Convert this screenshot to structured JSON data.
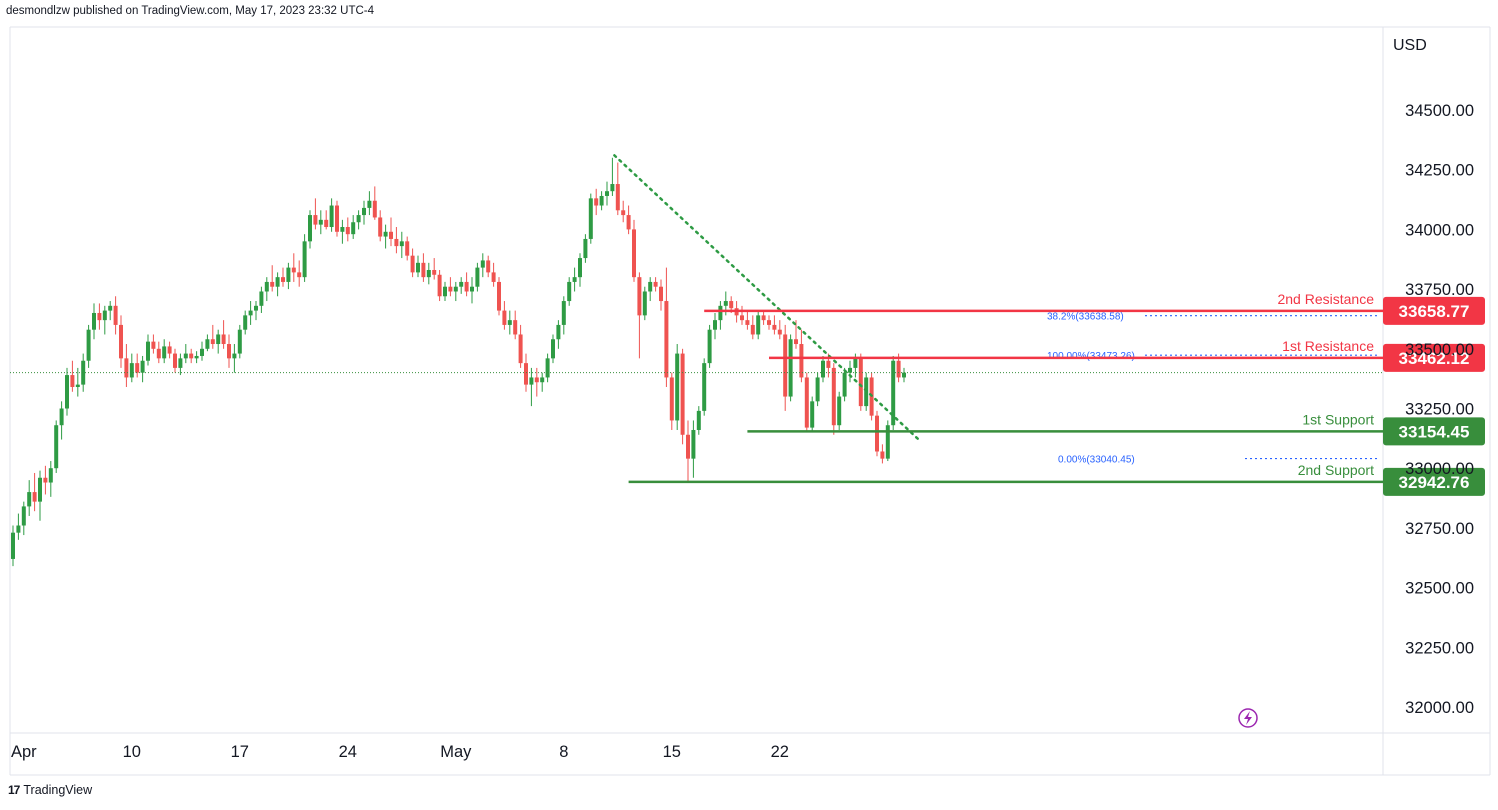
{
  "header": {
    "published_by": "desmondlzw published on TradingView.com, May 17, 2023 23:32 UTC-4"
  },
  "footer": {
    "brand": "TradingView",
    "brand_mark": "17"
  },
  "colors": {
    "bull": "#22ab94",
    "bear": "#f23645",
    "bull_body": "#2e9b44",
    "bear_body": "#ef5350",
    "support": "#388e3c",
    "resistance": "#f23645",
    "fib": "#2962ff",
    "trend": "#2e9b44"
  },
  "chart_data": {
    "type": "candlestick",
    "currency_label": "USD",
    "ylim": [
      31850,
      34750
    ],
    "y_ticks": [
      32000,
      32250,
      32500,
      32750,
      33000,
      33250,
      33500,
      33750,
      34000,
      34250,
      34500
    ],
    "y_tick_labels": [
      "32000.00",
      "32250.00",
      "32500.00",
      "32750.00",
      "33000.00",
      "33250.00",
      "33500.00",
      "33750.00",
      "34000.00",
      "34250.00",
      "34500.00"
    ],
    "x_ticks": [
      {
        "label": "Apr",
        "date": "2023-04-03"
      },
      {
        "label": "10",
        "date": "2023-04-10"
      },
      {
        "label": "17",
        "date": "2023-04-17"
      },
      {
        "label": "24",
        "date": "2023-04-24"
      },
      {
        "label": "May",
        "date": "2023-05-01"
      },
      {
        "label": "8",
        "date": "2023-05-08"
      },
      {
        "label": "15",
        "date": "2023-05-15"
      },
      {
        "label": "22",
        "date": "2023-05-22"
      }
    ],
    "bars_per_day": 4,
    "candles": [
      [
        32620,
        32760,
        32590,
        32730
      ],
      [
        32730,
        32810,
        32700,
        32760
      ],
      [
        32760,
        32860,
        32720,
        32840
      ],
      [
        32840,
        32950,
        32800,
        32900
      ],
      [
        32900,
        32980,
        32820,
        32860
      ],
      [
        32860,
        32990,
        32780,
        32960
      ],
      [
        32960,
        33010,
        32890,
        32940
      ],
      [
        32940,
        33030,
        32880,
        33000
      ],
      [
        33000,
        33200,
        32980,
        33180
      ],
      [
        33180,
        33280,
        33120,
        33250
      ],
      [
        33250,
        33420,
        33220,
        33390
      ],
      [
        33390,
        33450,
        33320,
        33340
      ],
      [
        33340,
        33420,
        33300,
        33350
      ],
      [
        33350,
        33480,
        33320,
        33450
      ],
      [
        33450,
        33600,
        33420,
        33580
      ],
      [
        33580,
        33690,
        33540,
        33650
      ],
      [
        33650,
        33690,
        33580,
        33620
      ],
      [
        33620,
        33680,
        33560,
        33660
      ],
      [
        33660,
        33700,
        33620,
        33680
      ],
      [
        33680,
        33720,
        33560,
        33600
      ],
      [
        33600,
        33640,
        33420,
        33460
      ],
      [
        33460,
        33520,
        33340,
        33380
      ],
      [
        33380,
        33480,
        33360,
        33440
      ],
      [
        33440,
        33480,
        33380,
        33400
      ],
      [
        33400,
        33470,
        33360,
        33450
      ],
      [
        33450,
        33560,
        33430,
        33530
      ],
      [
        33530,
        33560,
        33480,
        33500
      ],
      [
        33500,
        33530,
        33440,
        33460
      ],
      [
        33460,
        33540,
        33440,
        33510
      ],
      [
        33510,
        33530,
        33460,
        33480
      ],
      [
        33480,
        33500,
        33400,
        33420
      ],
      [
        33420,
        33480,
        33390,
        33460
      ],
      [
        33460,
        33520,
        33440,
        33480
      ],
      [
        33480,
        33500,
        33440,
        33460
      ],
      [
        33460,
        33490,
        33440,
        33470
      ],
      [
        33470,
        33530,
        33450,
        33500
      ],
      [
        33500,
        33560,
        33490,
        33540
      ],
      [
        33540,
        33600,
        33500,
        33520
      ],
      [
        33520,
        33580,
        33480,
        33560
      ],
      [
        33560,
        33620,
        33500,
        33520
      ],
      [
        33520,
        33560,
        33420,
        33460
      ],
      [
        33460,
        33520,
        33400,
        33480
      ],
      [
        33480,
        33600,
        33460,
        33580
      ],
      [
        33580,
        33660,
        33560,
        33640
      ],
      [
        33640,
        33700,
        33600,
        33660
      ],
      [
        33660,
        33700,
        33620,
        33680
      ],
      [
        33680,
        33760,
        33650,
        33740
      ],
      [
        33740,
        33800,
        33700,
        33780
      ],
      [
        33780,
        33850,
        33740,
        33760
      ],
      [
        33760,
        33820,
        33720,
        33800
      ],
      [
        33800,
        33840,
        33760,
        33780
      ],
      [
        33780,
        33860,
        33750,
        33840
      ],
      [
        33840,
        33900,
        33780,
        33820
      ],
      [
        33820,
        33870,
        33760,
        33800
      ],
      [
        33800,
        33980,
        33780,
        33950
      ],
      [
        33950,
        34080,
        33920,
        34060
      ],
      [
        34060,
        34130,
        34000,
        34020
      ],
      [
        34020,
        34080,
        33980,
        34040
      ],
      [
        34040,
        34080,
        34000,
        34010
      ],
      [
        34010,
        34130,
        33990,
        34100
      ],
      [
        34100,
        34120,
        33970,
        33990
      ],
      [
        33990,
        34040,
        33940,
        34010
      ],
      [
        34010,
        34050,
        33950,
        33980
      ],
      [
        33980,
        34060,
        33960,
        34030
      ],
      [
        34030,
        34080,
        34000,
        34060
      ],
      [
        34060,
        34120,
        34020,
        34090
      ],
      [
        34090,
        34160,
        34060,
        34120
      ],
      [
        34120,
        34180,
        34040,
        34050
      ],
      [
        34050,
        34080,
        33950,
        33970
      ],
      [
        33970,
        34020,
        33920,
        33990
      ],
      [
        33990,
        34050,
        33930,
        33960
      ],
      [
        33960,
        34010,
        33900,
        33930
      ],
      [
        33930,
        33990,
        33880,
        33950
      ],
      [
        33950,
        33970,
        33870,
        33890
      ],
      [
        33890,
        33920,
        33800,
        33820
      ],
      [
        33820,
        33890,
        33800,
        33860
      ],
      [
        33860,
        33900,
        33780,
        33800
      ],
      [
        33800,
        33860,
        33770,
        33830
      ],
      [
        33830,
        33880,
        33790,
        33810
      ],
      [
        33810,
        33830,
        33700,
        33720
      ],
      [
        33720,
        33780,
        33700,
        33760
      ],
      [
        33760,
        33800,
        33720,
        33740
      ],
      [
        33740,
        33780,
        33700,
        33760
      ],
      [
        33760,
        33800,
        33730,
        33780
      ],
      [
        33780,
        33820,
        33720,
        33740
      ],
      [
        33740,
        33800,
        33690,
        33760
      ],
      [
        33760,
        33860,
        33740,
        33840
      ],
      [
        33840,
        33900,
        33800,
        33870
      ],
      [
        33870,
        33890,
        33800,
        33820
      ],
      [
        33820,
        33860,
        33760,
        33780
      ],
      [
        33780,
        33800,
        33640,
        33660
      ],
      [
        33660,
        33700,
        33580,
        33600
      ],
      [
        33600,
        33660,
        33560,
        33620
      ],
      [
        33620,
        33660,
        33540,
        33560
      ],
      [
        33560,
        33600,
        33420,
        33440
      ],
      [
        33440,
        33480,
        33320,
        33350
      ],
      [
        33350,
        33420,
        33260,
        33380
      ],
      [
        33380,
        33420,
        33300,
        33360
      ],
      [
        33360,
        33400,
        33320,
        33380
      ],
      [
        33380,
        33480,
        33360,
        33460
      ],
      [
        33460,
        33560,
        33440,
        33540
      ],
      [
        33540,
        33620,
        33500,
        33600
      ],
      [
        33600,
        33720,
        33560,
        33700
      ],
      [
        33700,
        33800,
        33680,
        33780
      ],
      [
        33780,
        33840,
        33740,
        33800
      ],
      [
        33800,
        33900,
        33760,
        33880
      ],
      [
        33880,
        33980,
        33860,
        33960
      ],
      [
        33960,
        34150,
        33940,
        34130
      ],
      [
        34130,
        34170,
        34060,
        34100
      ],
      [
        34100,
        34160,
        34080,
        34140
      ],
      [
        34140,
        34200,
        34100,
        34160
      ],
      [
        34160,
        34300,
        34140,
        34190
      ],
      [
        34190,
        34280,
        34060,
        34080
      ],
      [
        34080,
        34120,
        34030,
        34060
      ],
      [
        34060,
        34100,
        33980,
        34000
      ],
      [
        34000,
        34040,
        33780,
        33800
      ],
      [
        33800,
        33820,
        33460,
        33640
      ],
      [
        33640,
        33760,
        33620,
        33740
      ],
      [
        33740,
        33800,
        33700,
        33780
      ],
      [
        33780,
        33800,
        33740,
        33760
      ],
      [
        33760,
        33790,
        33660,
        33700
      ],
      [
        33700,
        33840,
        33340,
        33380
      ],
      [
        33380,
        33400,
        33160,
        33200
      ],
      [
        33200,
        33520,
        33160,
        33480
      ],
      [
        33480,
        33500,
        33100,
        33140
      ],
      [
        33140,
        33200,
        32940,
        33040
      ],
      [
        33040,
        33200,
        32960,
        33160
      ],
      [
        33160,
        33260,
        33140,
        33240
      ],
      [
        33240,
        33460,
        33220,
        33440
      ],
      [
        33440,
        33600,
        33420,
        33580
      ],
      [
        33580,
        33650,
        33540,
        33620
      ],
      [
        33620,
        33700,
        33580,
        33680
      ],
      [
        33680,
        33740,
        33640,
        33700
      ],
      [
        33700,
        33720,
        33650,
        33670
      ],
      [
        33670,
        33700,
        33610,
        33640
      ],
      [
        33640,
        33680,
        33600,
        33620
      ],
      [
        33620,
        33660,
        33580,
        33600
      ],
      [
        33600,
        33640,
        33540,
        33560
      ],
      [
        33560,
        33660,
        33540,
        33640
      ],
      [
        33640,
        33660,
        33600,
        33620
      ],
      [
        33620,
        33640,
        33580,
        33600
      ],
      [
        33600,
        33640,
        33560,
        33580
      ],
      [
        33580,
        33620,
        33540,
        33560
      ],
      [
        33560,
        33600,
        33240,
        33300
      ],
      [
        33300,
        33560,
        33280,
        33540
      ],
      [
        33540,
        33620,
        33500,
        33520
      ],
      [
        33520,
        33580,
        33360,
        33380
      ],
      [
        33380,
        33400,
        33150,
        33170
      ],
      [
        33170,
        33300,
        33150,
        33280
      ],
      [
        33280,
        33400,
        33260,
        33380
      ],
      [
        33380,
        33470,
        33360,
        33450
      ],
      [
        33450,
        33480,
        33380,
        33420
      ],
      [
        33420,
        33440,
        33140,
        33180
      ],
      [
        33180,
        33320,
        33160,
        33300
      ],
      [
        33300,
        33420,
        33280,
        33400
      ],
      [
        33400,
        33450,
        33360,
        33420
      ],
      [
        33420,
        33480,
        33380,
        33460
      ],
      [
        33460,
        33480,
        33240,
        33260
      ],
      [
        33260,
        33400,
        33240,
        33380
      ],
      [
        33380,
        33400,
        33200,
        33220
      ],
      [
        33220,
        33240,
        33050,
        33070
      ],
      [
        33070,
        33100,
        33020,
        33040
      ],
      [
        33040,
        33200,
        33030,
        33180
      ],
      [
        33180,
        33470,
        33160,
        33450
      ],
      [
        33450,
        33480,
        33360,
        33380
      ],
      [
        33380,
        33420,
        33360,
        33400
      ]
    ],
    "price_lines": [
      {
        "name": "2nd Resistance",
        "value": 33658.77,
        "label": "33658.77",
        "kind": "resistance",
        "start_bar": 128
      },
      {
        "name": "1st Resistance",
        "value": 33462.12,
        "label": "33462.12",
        "kind": "resistance",
        "start_bar": 140
      },
      {
        "name": "1st Support",
        "value": 33154.45,
        "label": "33154.45",
        "kind": "support",
        "start_bar": 136
      },
      {
        "name": "2nd Support",
        "value": 32942.76,
        "label": "32942.76",
        "kind": "support",
        "start_bar": 114
      }
    ],
    "fib_levels": [
      {
        "label": "38.2%(33638.58)",
        "value": 33638.58
      },
      {
        "label": "100.00%(33473.26)",
        "value": 33473.26
      },
      {
        "label": "0.00%(33040.45)",
        "value": 33040.45
      }
    ],
    "trendline": {
      "from": {
        "bar": 111,
        "value": 34310
      },
      "to": {
        "bar": 168,
        "value": 33110
      }
    },
    "last_price": 33400
  }
}
